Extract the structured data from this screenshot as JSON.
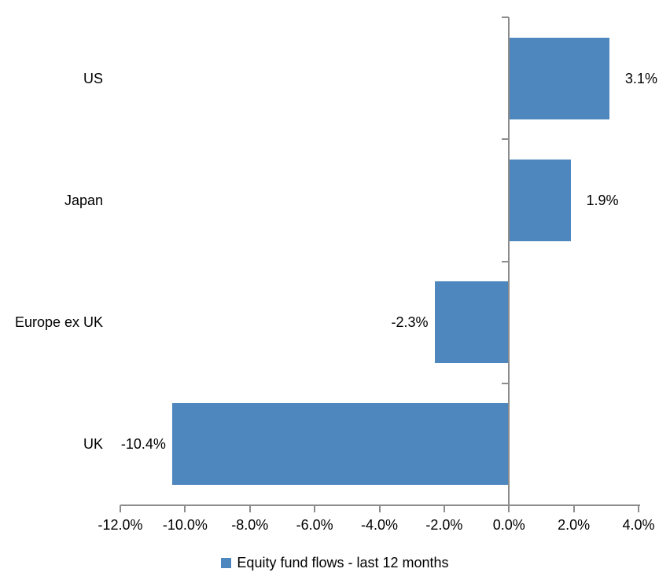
{
  "chart_data": {
    "type": "bar",
    "orientation": "horizontal",
    "title": "",
    "categories": [
      "US",
      "Japan",
      "Europe ex UK",
      "UK"
    ],
    "series": [
      {
        "name": "Equity fund flows - last 12 months",
        "values": [
          3.1,
          1.9,
          -2.3,
          -10.4
        ],
        "data_labels": [
          "3.1%",
          "1.9%",
          "-2.3%",
          "-10.4%"
        ]
      }
    ],
    "x_axis": {
      "min": -12,
      "max": 4,
      "tick_interval": 2,
      "tick_values": [
        -12,
        -10,
        -8,
        -6,
        -4,
        -2,
        0,
        2,
        4
      ],
      "tick_labels": [
        "-12.0%",
        "-10.0%",
        "-8.0%",
        "-6.0%",
        "-4.0%",
        "-2.0%",
        "0.0%",
        "2.0%",
        "4.0%"
      ]
    },
    "legend": {
      "position": "bottom",
      "entries": [
        "Equity fund flows - last 12 months"
      ]
    },
    "grid": false,
    "colors": {
      "bar": "#4d87bd",
      "axis": "#8c8c8c",
      "text": "#000000",
      "background": "#ffffff"
    }
  }
}
